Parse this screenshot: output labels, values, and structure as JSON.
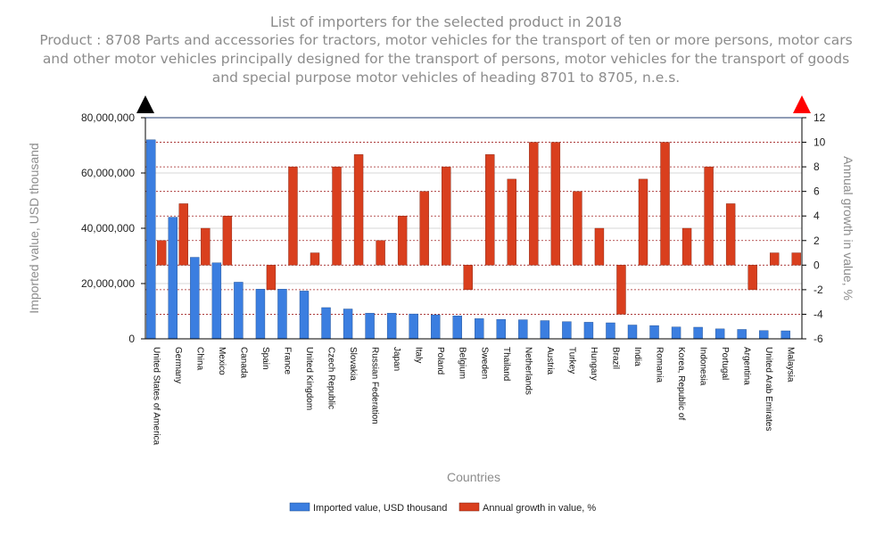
{
  "title": "List of importers for the selected product in 2018",
  "subtitle": "Product : 8708 Parts and accessories for tractors, motor vehicles for the transport of ten or more persons, motor cars and other motor vehicles principally designed for the transport of persons, motor vehicles for the transport of goods and special purpose motor vehicles of heading 8701 to 8705, n.e.s.",
  "colors": {
    "imported": "#3b7ee0",
    "growth": "#d93f1e",
    "left_arrow": "#000000",
    "right_arrow": "#ff0000",
    "gridline": "#a02020"
  },
  "chart_data": {
    "type": "bar",
    "xlabel": "Countries",
    "ylabel_left": "Imported value, USD thousand",
    "ylabel_right": "Annual growth in value, %",
    "ylim_left": [
      0,
      80000000
    ],
    "ylim_right": [
      -6,
      12
    ],
    "yticks_left": [
      "80,000,000",
      "60,000,000",
      "40,000,000",
      "20,000,000",
      "0"
    ],
    "yticks_right": [
      "12",
      "10",
      "8",
      "6",
      "4",
      "2",
      "0",
      "-2",
      "-4",
      "-6"
    ],
    "grid": true,
    "legend_position": "bottom",
    "categories": [
      "United States of America",
      "Germany",
      "China",
      "Mexico",
      "Canada",
      "Spain",
      "France",
      "United Kingdom",
      "Czech Republic",
      "Slovakia",
      "Russian Federation",
      "Japan",
      "Italy",
      "Poland",
      "Belgium",
      "Sweden",
      "Thailand",
      "Netherlands",
      "Austria",
      "Turkey",
      "Hungary",
      "Brazil",
      "India",
      "Romania",
      "Korea, Republic of",
      "Indonesia",
      "Portugal",
      "Argentina",
      "United Arab Emirates",
      "Malaysia"
    ],
    "series": [
      {
        "name": "Imported value, USD thousand",
        "axis": "left",
        "values": [
          72000000,
          44000000,
          29500000,
          27500000,
          20500000,
          18000000,
          18000000,
          17300000,
          11300000,
          10800000,
          9300000,
          9300000,
          9000000,
          8700000,
          8300000,
          7300000,
          7000000,
          6900000,
          6600000,
          6200000,
          6000000,
          5800000,
          5000000,
          4800000,
          4300000,
          4200000,
          3600000,
          3400000,
          3000000,
          2900000
        ]
      },
      {
        "name": "Annual growth in value, %",
        "axis": "right",
        "values": [
          2,
          5,
          3,
          4,
          null,
          -2,
          8,
          1,
          8,
          9,
          2,
          4,
          6,
          8,
          -2,
          9,
          7,
          10,
          10,
          6,
          3,
          -4,
          7,
          10,
          3,
          8,
          5,
          -2,
          1,
          1
        ]
      }
    ]
  }
}
